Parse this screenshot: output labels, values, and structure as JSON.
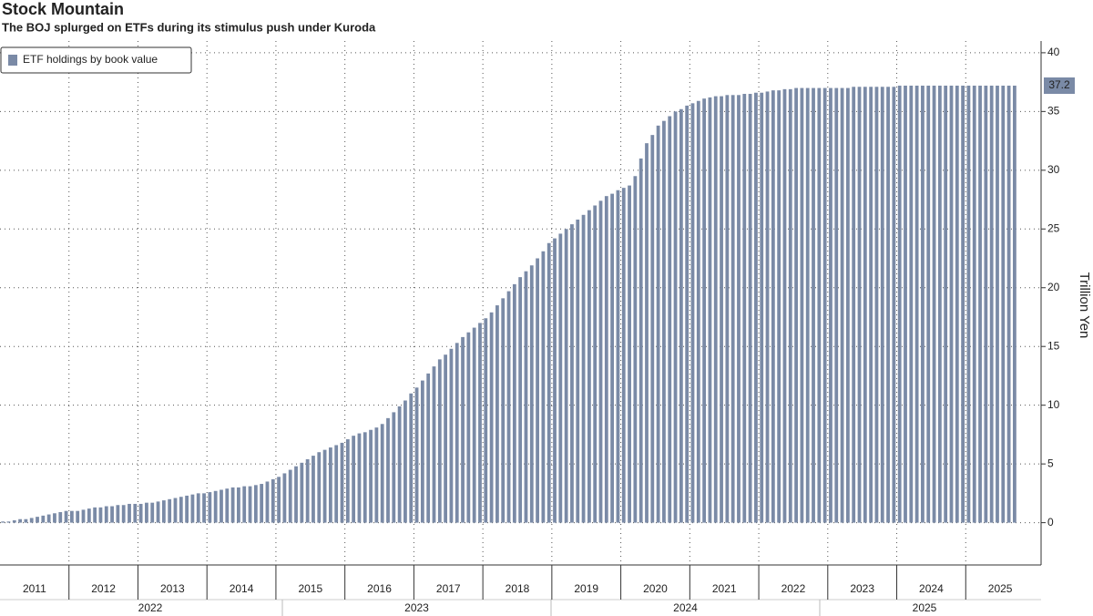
{
  "chart_data": {
    "type": "bar",
    "title": "Stock Mountain",
    "subtitle": "The BOJ splurged on ETFs during its stimulus push under Kuroda",
    "y_axis_label": "Trillion Yen",
    "years": [
      "2011",
      "2012",
      "2013",
      "2014",
      "2015",
      "2016",
      "2017",
      "2018",
      "2019",
      "2020",
      "2021",
      "2022",
      "2023",
      "2024",
      "2025"
    ],
    "x_group_labels": [
      "2022",
      "2023",
      "2024",
      "2025"
    ],
    "series": [
      {
        "name": "ETF holdings by book value",
        "color": "#7a8aa6",
        "values": [
          0.1,
          0.1,
          0.2,
          0.3,
          0.3,
          0.4,
          0.5,
          0.6,
          0.7,
          0.8,
          0.9,
          1.0,
          1.0,
          1.0,
          1.1,
          1.2,
          1.3,
          1.3,
          1.4,
          1.4,
          1.5,
          1.5,
          1.6,
          1.6,
          1.6,
          1.7,
          1.7,
          1.8,
          1.9,
          2.0,
          2.1,
          2.2,
          2.3,
          2.4,
          2.5,
          2.5,
          2.6,
          2.7,
          2.8,
          2.9,
          3.0,
          3.0,
          3.1,
          3.1,
          3.2,
          3.3,
          3.5,
          3.7,
          3.9,
          4.2,
          4.5,
          4.8,
          5.1,
          5.4,
          5.7,
          6.0,
          6.2,
          6.4,
          6.6,
          6.8,
          7.1,
          7.4,
          7.6,
          7.7,
          7.9,
          8.1,
          8.4,
          8.9,
          9.4,
          9.9,
          10.4,
          11.0,
          11.5,
          12.1,
          12.7,
          13.3,
          13.9,
          14.3,
          14.8,
          15.3,
          15.8,
          16.2,
          16.6,
          17.0,
          17.4,
          17.9,
          18.5,
          19.1,
          19.7,
          20.3,
          20.9,
          21.4,
          21.9,
          22.5,
          23.1,
          23.8,
          24.2,
          24.6,
          25.0,
          25.4,
          25.8,
          26.2,
          26.6,
          27.0,
          27.4,
          27.8,
          28.0,
          28.3,
          28.5,
          28.7,
          29.5,
          31.0,
          32.3,
          33.0,
          33.8,
          34.2,
          34.6,
          35.0,
          35.2,
          35.5,
          35.7,
          35.9,
          36.1,
          36.2,
          36.3,
          36.3,
          36.4,
          36.4,
          36.4,
          36.5,
          36.5,
          36.6,
          36.6,
          36.7,
          36.8,
          36.8,
          36.9,
          36.9,
          37.0,
          37.0,
          37.0,
          37.0,
          37.0,
          37.0,
          37.0,
          37.0,
          37.0,
          37.0,
          37.1,
          37.1,
          37.1,
          37.1,
          37.1,
          37.1,
          37.1,
          37.1,
          37.2,
          37.2,
          37.2,
          37.2,
          37.2,
          37.2,
          37.2,
          37.2,
          37.2,
          37.2,
          37.2,
          37.2,
          37.2,
          37.2,
          37.2,
          37.2,
          37.2,
          37.2,
          37.2,
          37.2,
          37.2
        ]
      }
    ],
    "ylim": [
      -3.6,
      41
    ],
    "yticks": [
      0,
      5,
      10,
      15,
      20,
      25,
      30,
      35,
      40
    ],
    "grid": true,
    "legend": "top-left"
  }
}
